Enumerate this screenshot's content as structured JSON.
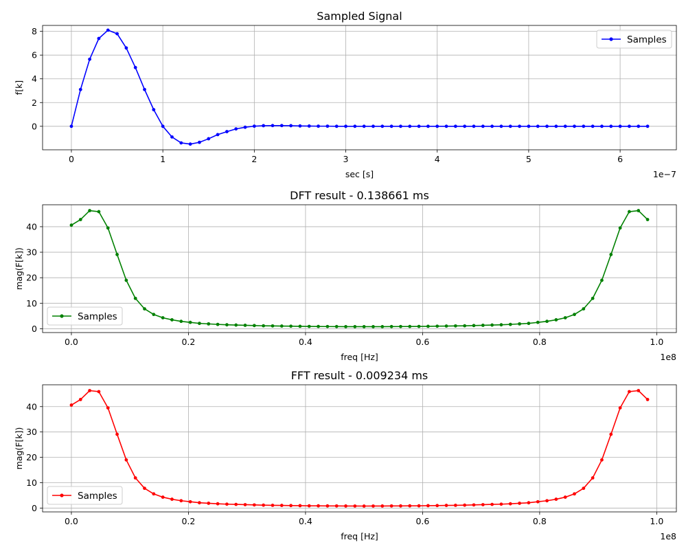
{
  "colors": {
    "blue": "#0000ff",
    "green": "#008000",
    "red": "#ff0000"
  },
  "chart_data": [
    {
      "type": "line",
      "title": "Sampled Signal",
      "xlabel": "sec [s]",
      "ylabel": "f[k]",
      "x_offset_label": "1e−7",
      "legend_loc": "upper right",
      "grid": true,
      "x": {
        "start": 0,
        "step": 1e-08,
        "count": 64
      },
      "xlim": [
        -3.15e-08,
        6.615e-07
      ],
      "ylim": [
        -1.98,
        8.5
      ],
      "xticks": [
        0,
        1e-07,
        2e-07,
        3e-07,
        4e-07,
        5e-07,
        6e-07
      ],
      "xtick_labels": [
        "0",
        "1",
        "2",
        "3",
        "4",
        "5",
        "6"
      ],
      "yticks": [
        0,
        2,
        4,
        6,
        8
      ],
      "ytick_labels": [
        "0",
        "2",
        "4",
        "6",
        "8"
      ],
      "series": [
        {
          "name": "Samples",
          "color": "blue",
          "values": [
            0,
            3.1,
            5.65,
            7.4,
            8.1,
            7.8,
            6.6,
            4.95,
            3.1,
            1.4,
            0,
            -0.9,
            -1.4,
            -1.5,
            -1.35,
            -1.05,
            -0.7,
            -0.45,
            -0.22,
            -0.08,
            0.01,
            0.05,
            0.06,
            0.06,
            0.05,
            0.03,
            0.02,
            0.01,
            0.01,
            0,
            0,
            0,
            0,
            0,
            0,
            0,
            0,
            0,
            0,
            0,
            0,
            0,
            0,
            0,
            0,
            0,
            0,
            0,
            0,
            0,
            0,
            0,
            0,
            0,
            0,
            0,
            0,
            0,
            0,
            0,
            0,
            0,
            0,
            0
          ]
        }
      ]
    },
    {
      "type": "line",
      "title": "DFT result - 0.138661 ms",
      "xlabel": "freq [Hz]",
      "ylabel": "mag(F[k])",
      "x_offset_label": "1e8",
      "legend_loc": "lower left",
      "grid": true,
      "x": {
        "start": 0,
        "step": 1562500,
        "count": 64
      },
      "xlim": [
        -4921875,
        103359375
      ],
      "ylim": [
        -1.5,
        48.6
      ],
      "xticks": [
        0,
        20000000,
        40000000,
        60000000,
        80000000,
        100000000
      ],
      "xtick_labels": [
        "0.0",
        "0.2",
        "0.4",
        "0.6",
        "0.8",
        "1.0"
      ],
      "yticks": [
        0,
        10,
        20,
        30,
        40
      ],
      "ytick_labels": [
        "0",
        "10",
        "20",
        "30",
        "40"
      ],
      "series": [
        {
          "name": "Samples",
          "color": "green",
          "values": [
            40.6,
            42.8,
            46.3,
            45.9,
            39.5,
            29.1,
            19.0,
            11.9,
            7.8,
            5.6,
            4.3,
            3.5,
            2.9,
            2.5,
            2.1,
            1.9,
            1.7,
            1.55,
            1.45,
            1.35,
            1.25,
            1.15,
            1.1,
            1.05,
            1.0,
            0.95,
            0.9,
            0.88,
            0.86,
            0.84,
            0.82,
            0.81,
            0.8,
            0.81,
            0.82,
            0.84,
            0.86,
            0.88,
            0.9,
            0.95,
            1.0,
            1.05,
            1.1,
            1.15,
            1.25,
            1.35,
            1.45,
            1.55,
            1.7,
            1.9,
            2.1,
            2.5,
            2.9,
            3.5,
            4.3,
            5.6,
            7.8,
            11.9,
            19.0,
            29.1,
            39.5,
            45.9,
            46.3,
            42.8
          ]
        }
      ]
    },
    {
      "type": "line",
      "title": "FFT result - 0.009234 ms",
      "xlabel": "freq [Hz]",
      "ylabel": "mag(F[k])",
      "x_offset_label": "1e8",
      "legend_loc": "lower left",
      "grid": true,
      "x": {
        "start": 0,
        "step": 1562500,
        "count": 64
      },
      "xlim": [
        -4921875,
        103359375
      ],
      "ylim": [
        -1.5,
        48.6
      ],
      "xticks": [
        0,
        20000000,
        40000000,
        60000000,
        80000000,
        100000000
      ],
      "xtick_labels": [
        "0.0",
        "0.2",
        "0.4",
        "0.6",
        "0.8",
        "1.0"
      ],
      "yticks": [
        0,
        10,
        20,
        30,
        40
      ],
      "ytick_labels": [
        "0",
        "10",
        "20",
        "30",
        "40"
      ],
      "series": [
        {
          "name": "Samples",
          "color": "red",
          "values": [
            40.6,
            42.8,
            46.3,
            45.9,
            39.5,
            29.1,
            19.0,
            11.9,
            7.8,
            5.6,
            4.3,
            3.5,
            2.9,
            2.5,
            2.1,
            1.9,
            1.7,
            1.55,
            1.45,
            1.35,
            1.25,
            1.15,
            1.1,
            1.05,
            1.0,
            0.95,
            0.9,
            0.88,
            0.86,
            0.84,
            0.82,
            0.81,
            0.8,
            0.81,
            0.82,
            0.84,
            0.86,
            0.88,
            0.9,
            0.95,
            1.0,
            1.05,
            1.1,
            1.15,
            1.25,
            1.35,
            1.45,
            1.55,
            1.7,
            1.9,
            2.1,
            2.5,
            2.9,
            3.5,
            4.3,
            5.6,
            7.8,
            11.9,
            19.0,
            29.1,
            39.5,
            45.9,
            46.3,
            42.8
          ]
        }
      ]
    }
  ]
}
